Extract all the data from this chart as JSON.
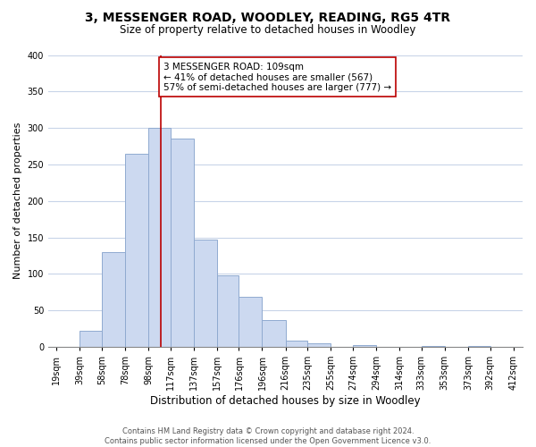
{
  "title": "3, MESSENGER ROAD, WOODLEY, READING, RG5 4TR",
  "subtitle": "Size of property relative to detached houses in Woodley",
  "xlabel": "Distribution of detached houses by size in Woodley",
  "ylabel": "Number of detached properties",
  "bar_color": "#ccd9f0",
  "bar_edge_color": "#90aad0",
  "bin_labels": [
    "19sqm",
    "39sqm",
    "58sqm",
    "78sqm",
    "98sqm",
    "117sqm",
    "137sqm",
    "157sqm",
    "176sqm",
    "196sqm",
    "216sqm",
    "235sqm",
    "255sqm",
    "274sqm",
    "294sqm",
    "314sqm",
    "333sqm",
    "353sqm",
    "373sqm",
    "392sqm",
    "412sqm"
  ],
  "bin_lefts": [
    19,
    39,
    58,
    78,
    98,
    117,
    137,
    157,
    176,
    196,
    216,
    235,
    255,
    274,
    294,
    314,
    333,
    353,
    373,
    392
  ],
  "bin_widths": [
    20,
    19,
    20,
    20,
    19,
    20,
    20,
    19,
    20,
    20,
    19,
    20,
    19,
    20,
    20,
    19,
    20,
    20,
    19,
    20
  ],
  "bar_heights": [
    0,
    22,
    130,
    265,
    300,
    285,
    147,
    98,
    68,
    37,
    9,
    5,
    0,
    2,
    0,
    0,
    1,
    0,
    1,
    0
  ],
  "tick_positions": [
    19,
    39,
    58,
    78,
    98,
    117,
    137,
    157,
    176,
    196,
    216,
    235,
    255,
    274,
    294,
    314,
    333,
    353,
    373,
    392,
    412
  ],
  "ylim": [
    0,
    400
  ],
  "yticks": [
    0,
    50,
    100,
    150,
    200,
    250,
    300,
    350,
    400
  ],
  "xlim": [
    12,
    420
  ],
  "vline_x": 109,
  "vline_color": "#bb0000",
  "annotation_text": "3 MESSENGER ROAD: 109sqm\n← 41% of detached houses are smaller (567)\n57% of semi-detached houses are larger (777) →",
  "annotation_box_color": "#ffffff",
  "annotation_box_edge": "#bb0000",
  "footer_line1": "Contains HM Land Registry data © Crown copyright and database right 2024.",
  "footer_line2": "Contains public sector information licensed under the Open Government Licence v3.0.",
  "background_color": "#ffffff",
  "grid_color": "#c8d4e8",
  "title_fontsize": 10,
  "subtitle_fontsize": 8.5,
  "xlabel_fontsize": 8.5,
  "ylabel_fontsize": 8,
  "tick_fontsize": 7,
  "footer_fontsize": 6,
  "annot_fontsize": 7.5
}
